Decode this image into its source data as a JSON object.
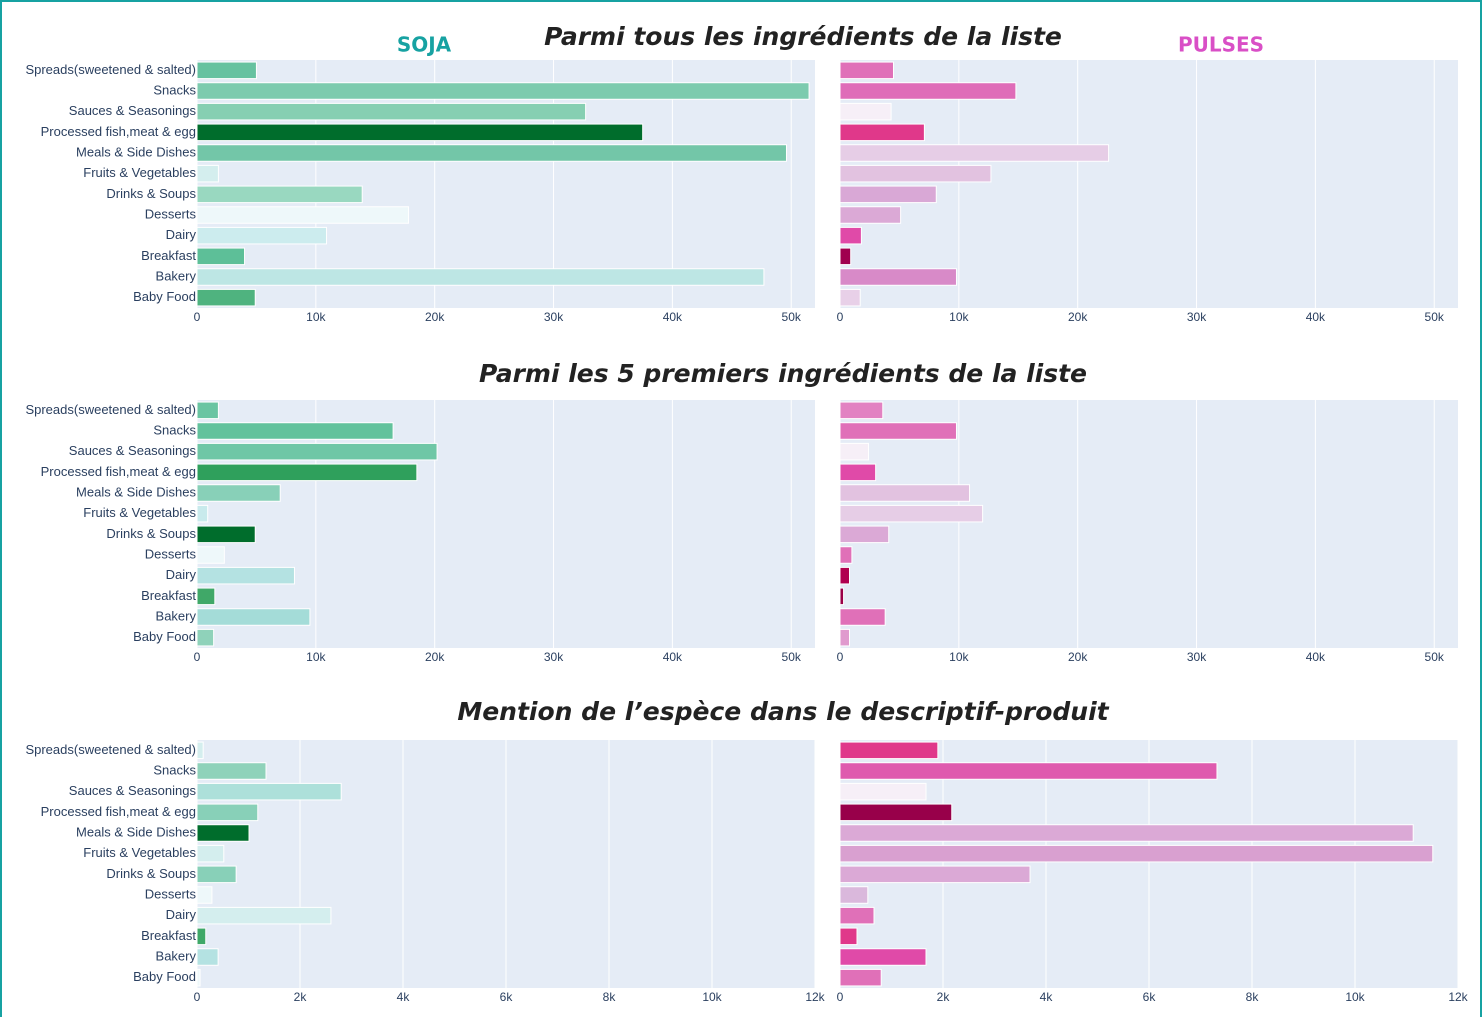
{
  "column_titles": [
    "SOJA",
    "PULSES"
  ],
  "row_titles": [
    "Parmi tous les ingrédients de la liste",
    "Parmi les 5 premiers ingrédients de la liste",
    "Mention de l’espèce dans le descriptif-produit"
  ],
  "chart_data": [
    {
      "type": "hbar",
      "categories": [
        "Spreads(sweetened & salted)",
        "Snacks",
        "Sauces & Seasonings",
        "Processed fish,meat & egg",
        "Meals & Side Dishes",
        "Fruits & Vegetables",
        "Drinks & Soups",
        "Desserts",
        "Dairy",
        "Breakfast",
        "Bakery",
        "Baby Food"
      ],
      "values": [
        5000,
        51500,
        32700,
        37500,
        49600,
        1800,
        13900,
        17800,
        10900,
        4000,
        47700,
        4900
      ],
      "colors": [
        "#66c2a0",
        "#7dcbae",
        "#86cfb2",
        "#006d2c",
        "#73c6a8",
        "#d4eeee",
        "#99d8c0",
        "#eef8fa",
        "#ccecee",
        "#5dbf98",
        "#bde6e4",
        "#4fb37f"
      ],
      "xlim": [
        0,
        52000
      ],
      "xticks": [
        0,
        {
          "value": 10000,
          "label": "10k"
        },
        {
          "value": 20000,
          "label": "20k"
        },
        {
          "value": 30000,
          "label": "30k"
        },
        {
          "value": 40000,
          "label": "40k"
        },
        {
          "value": 50000,
          "label": "50k"
        }
      ],
      "grid": true
    },
    {
      "type": "hbar",
      "values": [
        4500,
        14800,
        4300,
        7100,
        22600,
        12700,
        8100,
        5100,
        1800,
        900,
        9800,
        1700
      ],
      "colors": [
        "#e070b8",
        "#df6cb8",
        "#f6eff7",
        "#e0388a",
        "#e6cde6",
        "#e2c2e0",
        "#d9a8d6",
        "#dba9d6",
        "#e04aa8",
        "#a0004f",
        "#d88ac8",
        "#e8d0e8"
      ],
      "xlim": [
        0,
        52000
      ],
      "xticks": [
        0,
        {
          "value": 10000,
          "label": "10k"
        },
        {
          "value": 20000,
          "label": "20k"
        },
        {
          "value": 30000,
          "label": "30k"
        },
        {
          "value": 40000,
          "label": "40k"
        },
        {
          "value": 50000,
          "label": "50k"
        }
      ],
      "grid": true
    },
    {
      "type": "hbar",
      "categories": [
        "Spreads(sweetened & salted)",
        "Snacks",
        "Sauces & Seasonings",
        "Processed fish,meat & egg",
        "Meals & Side Dishes",
        "Fruits & Vegetables",
        "Drinks & Soups",
        "Desserts",
        "Dairy",
        "Breakfast",
        "Bakery",
        "Baby Food"
      ],
      "values": [
        1800,
        16500,
        20200,
        18500,
        7000,
        900,
        4900,
        2300,
        8200,
        1500,
        9500,
        1400
      ],
      "colors": [
        "#6ac5a2",
        "#62c29c",
        "#6fc7a6",
        "#2fa05c",
        "#88d0b8",
        "#c8eaec",
        "#006d2c",
        "#eef8fa",
        "#b4e2e2",
        "#40a868",
        "#a4dcd8",
        "#8fd2ba"
      ],
      "xlim": [
        0,
        52000
      ],
      "xticks": [
        0,
        {
          "value": 10000,
          "label": "10k"
        },
        {
          "value": 20000,
          "label": "20k"
        },
        {
          "value": 30000,
          "label": "30k"
        },
        {
          "value": 40000,
          "label": "40k"
        },
        {
          "value": 50000,
          "label": "50k"
        }
      ],
      "grid": true
    },
    {
      "type": "hbar",
      "values": [
        3600,
        9800,
        2400,
        3000,
        10900,
        12000,
        4100,
        1000,
        800,
        300,
        3800,
        800
      ],
      "colors": [
        "#e282c2",
        "#e070b8",
        "#f6eff7",
        "#e04aa8",
        "#e2c2e0",
        "#e6cde6",
        "#dba9d6",
        "#e070b8",
        "#b0004f",
        "#9a0048",
        "#e070b8",
        "#e09ace"
      ],
      "xlim": [
        0,
        52000
      ],
      "xticks": [
        0,
        {
          "value": 10000,
          "label": "10k"
        },
        {
          "value": 20000,
          "label": "20k"
        },
        {
          "value": 30000,
          "label": "30k"
        },
        {
          "value": 40000,
          "label": "40k"
        },
        {
          "value": 50000,
          "label": "50k"
        }
      ],
      "grid": true
    },
    {
      "type": "hbar",
      "categories": [
        "Spreads(sweetened & salted)",
        "Snacks",
        "Sauces & Seasonings",
        "Processed fish,meat & egg",
        "Meals & Side Dishes",
        "Fruits & Vegetables",
        "Drinks & Soups",
        "Desserts",
        "Dairy",
        "Breakfast",
        "Bakery",
        "Baby Food"
      ],
      "values": [
        120,
        1340,
        2800,
        1180,
        1010,
        520,
        760,
        290,
        2600,
        170,
        410,
        60
      ],
      "colors": [
        "#d4eeee",
        "#8fd2ba",
        "#ade0da",
        "#88d0b8",
        "#006d2c",
        "#d4eeee",
        "#88d0b8",
        "#eef8fa",
        "#d4eeee",
        "#3fa868",
        "#b4e2e2",
        "#eef8fa"
      ],
      "xlim": [
        0,
        12000
      ],
      "xticks": [
        0,
        {
          "value": 2000,
          "label": "2k"
        },
        {
          "value": 4000,
          "label": "4k"
        },
        {
          "value": 6000,
          "label": "6k"
        },
        {
          "value": 8000,
          "label": "8k"
        },
        {
          "value": 10000,
          "label": "10k"
        },
        {
          "value": 12000,
          "label": "12k"
        }
      ],
      "grid": true
    },
    {
      "type": "hbar",
      "values": [
        1900,
        7320,
        1670,
        2170,
        11130,
        11510,
        3690,
        540,
        660,
        330,
        1670,
        800
      ],
      "colors": [
        "#e0388a",
        "#df5aae",
        "#f6eff7",
        "#98004a",
        "#dba9d6",
        "#d9a0d0",
        "#dba9d6",
        "#dab8dc",
        "#e070b8",
        "#e0388a",
        "#e04aa8",
        "#e070b8"
      ],
      "xlim": [
        0,
        12000
      ],
      "xticks": [
        0,
        {
          "value": 2000,
          "label": "2k"
        },
        {
          "value": 4000,
          "label": "4k"
        },
        {
          "value": 6000,
          "label": "6k"
        },
        {
          "value": 8000,
          "label": "8k"
        },
        {
          "value": 10000,
          "label": "10k"
        },
        {
          "value": 12000,
          "label": "12k"
        }
      ],
      "grid": true
    }
  ]
}
